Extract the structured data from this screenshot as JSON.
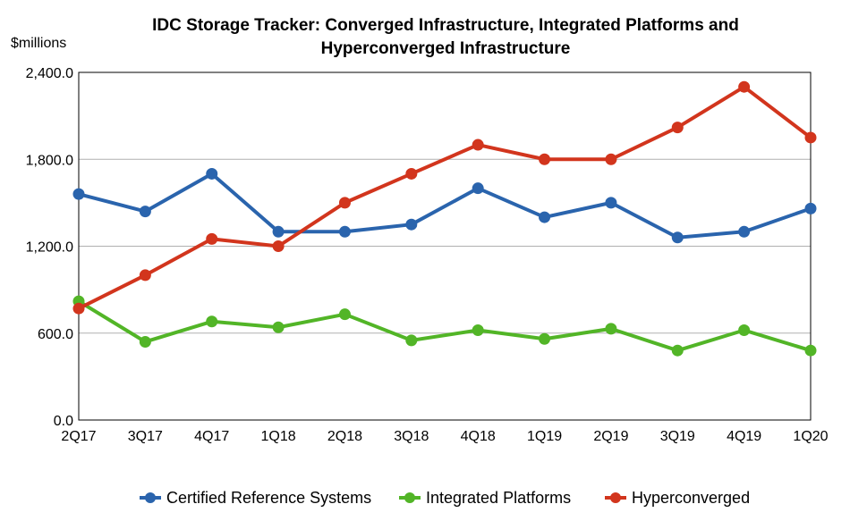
{
  "chart_data": {
    "type": "line",
    "title_line1": "IDC Storage Tracker: Converged Infrastructure, Integrated Platforms and",
    "title_line2": "Hyperconverged Infrastructure",
    "ylabel": "$millions",
    "xlabel": "",
    "categories": [
      "2Q17",
      "3Q17",
      "4Q17",
      "1Q18",
      "2Q18",
      "3Q18",
      "4Q18",
      "1Q19",
      "2Q19",
      "3Q19",
      "4Q19",
      "1Q20"
    ],
    "ylim": [
      0,
      2400
    ],
    "yticks": [
      0,
      600,
      1200,
      1800,
      2400
    ],
    "ytick_labels": [
      "0.0",
      "600.0",
      "1,200.0",
      "1,800.0",
      "2,400.0"
    ],
    "grid": true,
    "legend_position": "bottom",
    "series": [
      {
        "name": "Certified Reference Systems",
        "color": "#2a64ad",
        "values": [
          1560,
          1440,
          1700,
          1300,
          1300,
          1350,
          1600,
          1400,
          1500,
          1260,
          1300,
          1460
        ]
      },
      {
        "name": "Integrated Platforms",
        "color": "#52b527",
        "values": [
          820,
          540,
          680,
          640,
          730,
          550,
          620,
          560,
          630,
          480,
          620,
          480
        ]
      },
      {
        "name": "Hyperconverged",
        "color": "#d2351d",
        "values": [
          770,
          1000,
          1250,
          1200,
          1500,
          1700,
          1900,
          1800,
          1800,
          2020,
          2300,
          1950
        ]
      }
    ]
  }
}
